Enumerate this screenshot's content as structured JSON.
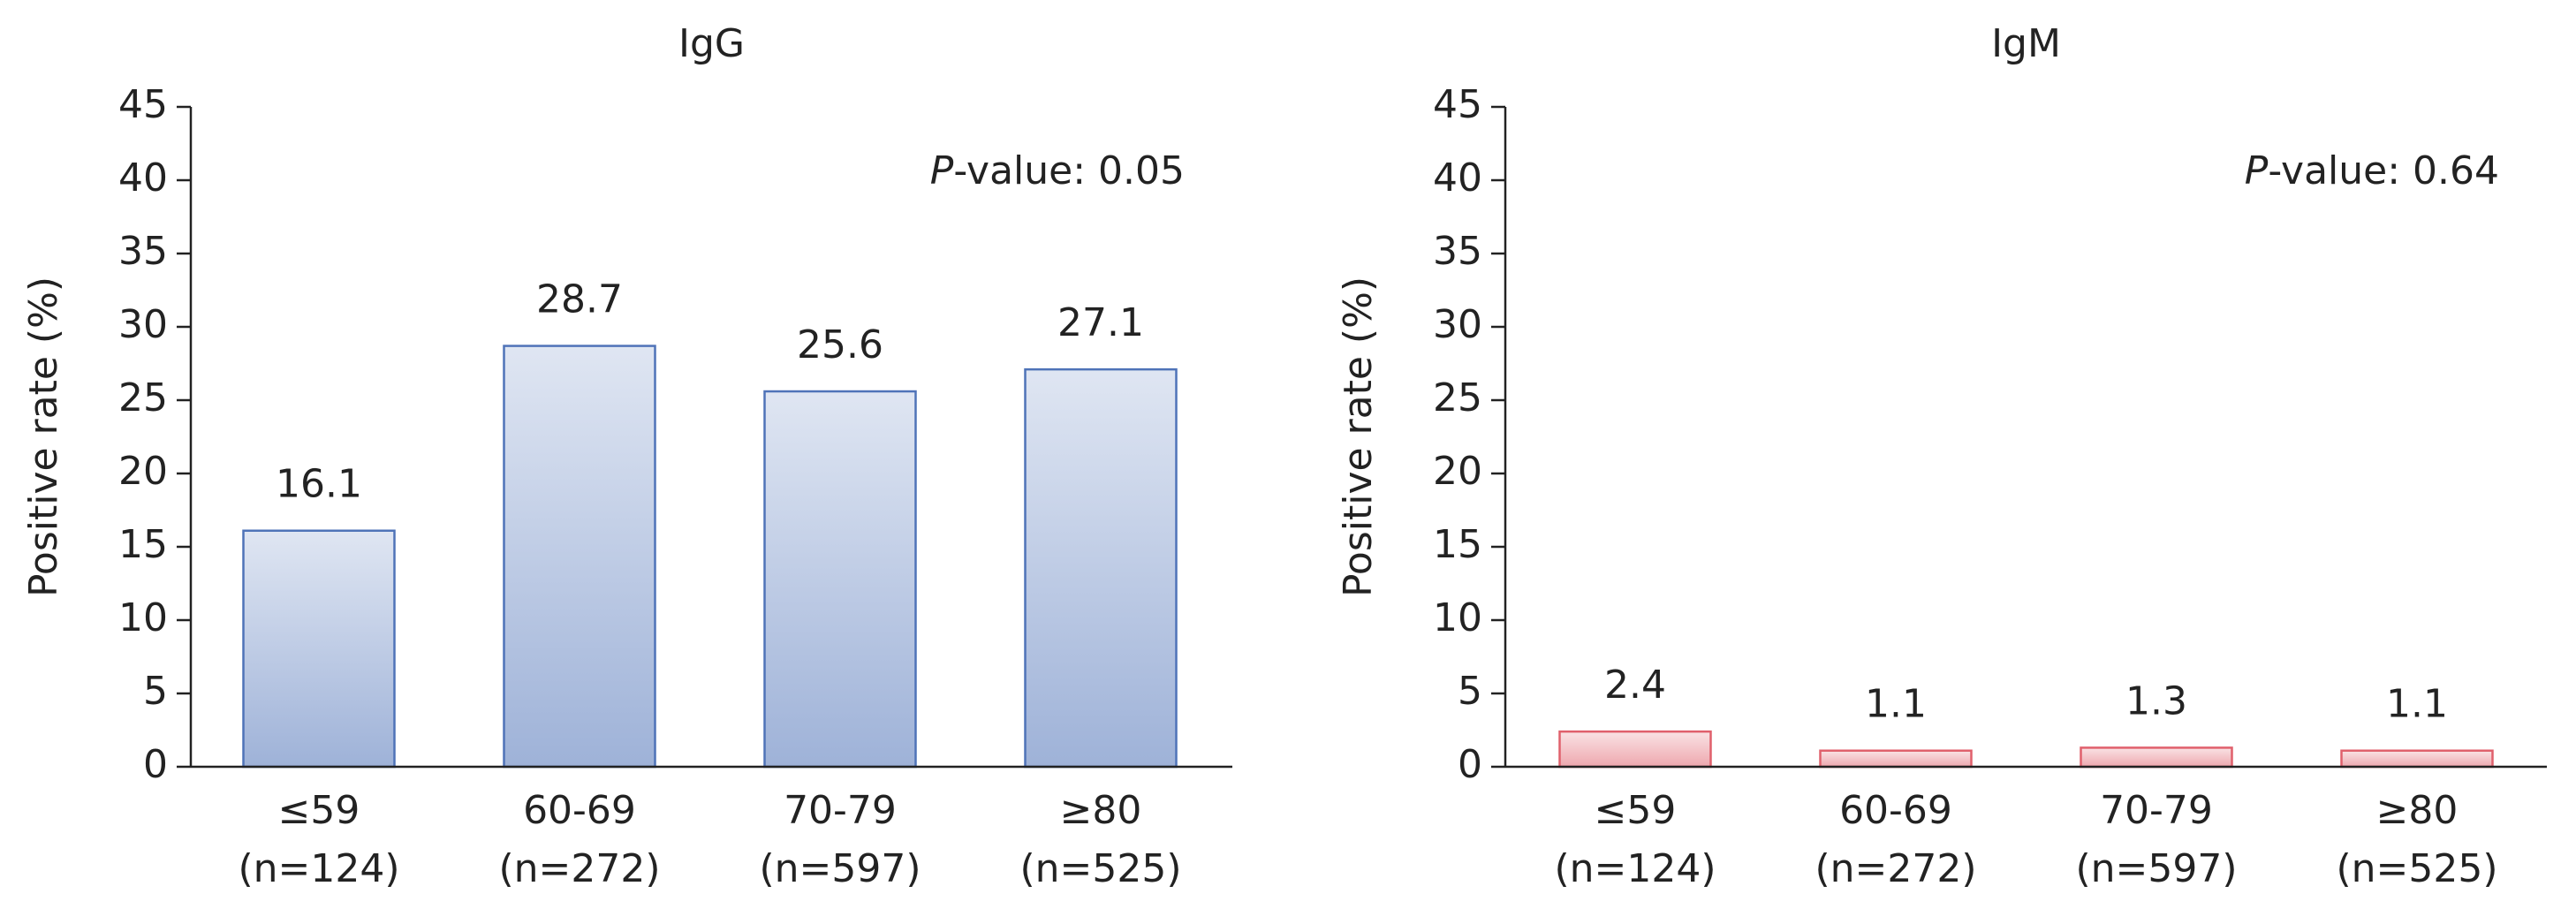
{
  "chart_data": [
    {
      "type": "bar",
      "title": "IgG",
      "ylabel": "Positive rate (%)",
      "annotation": "P-value: 0.05",
      "categories": [
        "≤59",
        "60-69",
        "70-79",
        "≥80"
      ],
      "sample_sizes": [
        "(n=124)",
        "(n=272)",
        "(n=597)",
        "(n=525)"
      ],
      "values": [
        16.1,
        28.7,
        25.6,
        27.1
      ],
      "color": "#4f73b8",
      "ylim": [
        0,
        45
      ],
      "yticks": [
        0,
        5,
        10,
        15,
        20,
        25,
        30,
        35,
        40,
        45
      ]
    },
    {
      "type": "bar",
      "title": "IgM",
      "ylabel": "Positive rate (%)",
      "annotation": "P-value: 0.64",
      "categories": [
        "≤59",
        "60-69",
        "70-79",
        "≥80"
      ],
      "sample_sizes": [
        "(n=124)",
        "(n=272)",
        "(n=597)",
        "(n=525)"
      ],
      "values": [
        2.4,
        1.1,
        1.3,
        1.1
      ],
      "color": "#e0606c",
      "ylim": [
        0,
        45
      ],
      "yticks": [
        0,
        5,
        10,
        15,
        20,
        25,
        30,
        35,
        40,
        45
      ]
    }
  ]
}
